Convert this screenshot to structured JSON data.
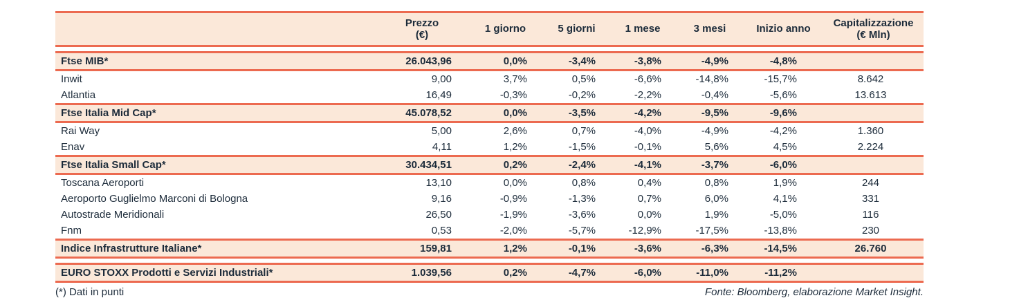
{
  "colors": {
    "accent_line": "#EC6A50",
    "row_highlight_bg": "#FBE8D9",
    "text": "#1C2B3A",
    "page_bg": "#FFFFFF"
  },
  "table": {
    "columns": [
      {
        "label": ""
      },
      {
        "label": "Prezzo",
        "sub": "(€)"
      },
      {
        "label": "1 giorno"
      },
      {
        "label": "5 giorni"
      },
      {
        "label": "1 mese"
      },
      {
        "label": "3 mesi"
      },
      {
        "label": "Inizio anno"
      },
      {
        "label": "Capitalizzazione",
        "sub": "(€ Mln)"
      }
    ],
    "rows": [
      {
        "type": "index",
        "name": "Ftse MIB*",
        "prezzo": "26.043,96",
        "g1": "0,0%",
        "g5": "-3,4%",
        "m1": "-3,8%",
        "m3": "-4,9%",
        "inizio": "-4,8%",
        "cap": ""
      },
      {
        "type": "stock",
        "name": "Inwit",
        "prezzo": "9,00",
        "g1": "3,7%",
        "g5": "0,5%",
        "m1": "-6,6%",
        "m3": "-14,8%",
        "inizio": "-15,7%",
        "cap": "8.642"
      },
      {
        "type": "stock",
        "name": "Atlantia",
        "prezzo": "16,49",
        "g1": "-0,3%",
        "g5": "-0,2%",
        "m1": "-2,2%",
        "m3": "-0,4%",
        "inizio": "-5,6%",
        "cap": "13.613"
      },
      {
        "type": "index",
        "name": "Ftse Italia Mid Cap*",
        "prezzo": "45.078,52",
        "g1": "0,0%",
        "g5": "-3,5%",
        "m1": "-4,2%",
        "m3": "-9,5%",
        "inizio": "-9,6%",
        "cap": ""
      },
      {
        "type": "stock",
        "name": "Rai Way",
        "prezzo": "5,00",
        "g1": "2,6%",
        "g5": "0,7%",
        "m1": "-4,0%",
        "m3": "-4,9%",
        "inizio": "-4,2%",
        "cap": "1.360"
      },
      {
        "type": "stock",
        "name": "Enav",
        "prezzo": "4,11",
        "g1": "1,2%",
        "g5": "-1,5%",
        "m1": "-0,1%",
        "m3": "5,6%",
        "inizio": "4,5%",
        "cap": "2.224"
      },
      {
        "type": "index",
        "name": "Ftse Italia Small Cap*",
        "prezzo": "30.434,51",
        "g1": "0,2%",
        "g5": "-2,4%",
        "m1": "-4,1%",
        "m3": "-3,7%",
        "inizio": "-6,0%",
        "cap": ""
      },
      {
        "type": "stock",
        "name": "Toscana Aeroporti",
        "prezzo": "13,10",
        "g1": "0,0%",
        "g5": "0,8%",
        "m1": "0,4%",
        "m3": "0,8%",
        "inizio": "1,9%",
        "cap": "244"
      },
      {
        "type": "stock",
        "name": "Aeroporto Guglielmo Marconi di Bologna",
        "prezzo": "9,16",
        "g1": "-0,9%",
        "g5": "-1,3%",
        "m1": "0,7%",
        "m3": "6,0%",
        "inizio": "4,1%",
        "cap": "331"
      },
      {
        "type": "stock",
        "name": "Autostrade Meridionali",
        "prezzo": "26,50",
        "g1": "-1,9%",
        "g5": "-3,6%",
        "m1": "0,0%",
        "m3": "1,9%",
        "inizio": "-5,0%",
        "cap": "116"
      },
      {
        "type": "stock",
        "name": "Fnm",
        "prezzo": "0,53",
        "g1": "-2,0%",
        "g5": "-5,7%",
        "m1": "-12,9%",
        "m3": "-17,5%",
        "inizio": "-13,8%",
        "cap": "230"
      },
      {
        "type": "index",
        "name": "Indice Infrastrutture Italiane*",
        "prezzo": "159,81",
        "g1": "1,2%",
        "g5": "-0,1%",
        "m1": "-3,6%",
        "m3": "-6,3%",
        "inizio": "-14,5%",
        "cap": "26.760"
      },
      {
        "type": "index",
        "gap_before": true,
        "name": "EURO STOXX Prodotti e Servizi Industriali*",
        "prezzo": "1.039,56",
        "g1": "0,2%",
        "g5": "-4,7%",
        "m1": "-6,0%",
        "m3": "-11,0%",
        "inizio": "-11,2%",
        "cap": ""
      }
    ]
  },
  "footer": {
    "note": "(*) Dati in punti",
    "source": "Fonte: Bloomberg, elaborazione Market Insight."
  }
}
